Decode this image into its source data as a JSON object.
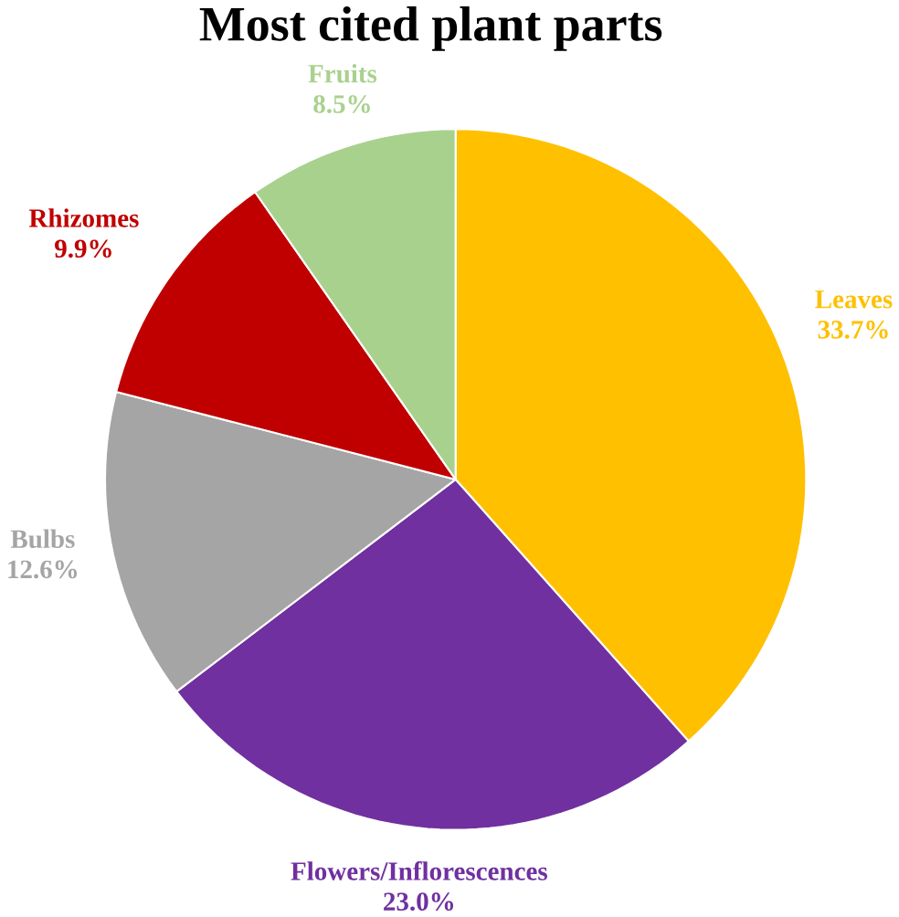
{
  "chart_data": {
    "type": "pie",
    "title": "Most cited plant parts",
    "categories": [
      "Leaves",
      "Flowers/Inflorescences",
      "Bulbs",
      "Rhizomes",
      "Fruits"
    ],
    "values": [
      33.7,
      23.0,
      12.6,
      9.9,
      8.5
    ],
    "colors": [
      "#ffc000",
      "#7030a0",
      "#a5a5a5",
      "#c00000",
      "#a9d18e"
    ],
    "value_labels": [
      "33.7%",
      "23.0%",
      "12.6%",
      "9.9%",
      "8.5%"
    ]
  }
}
